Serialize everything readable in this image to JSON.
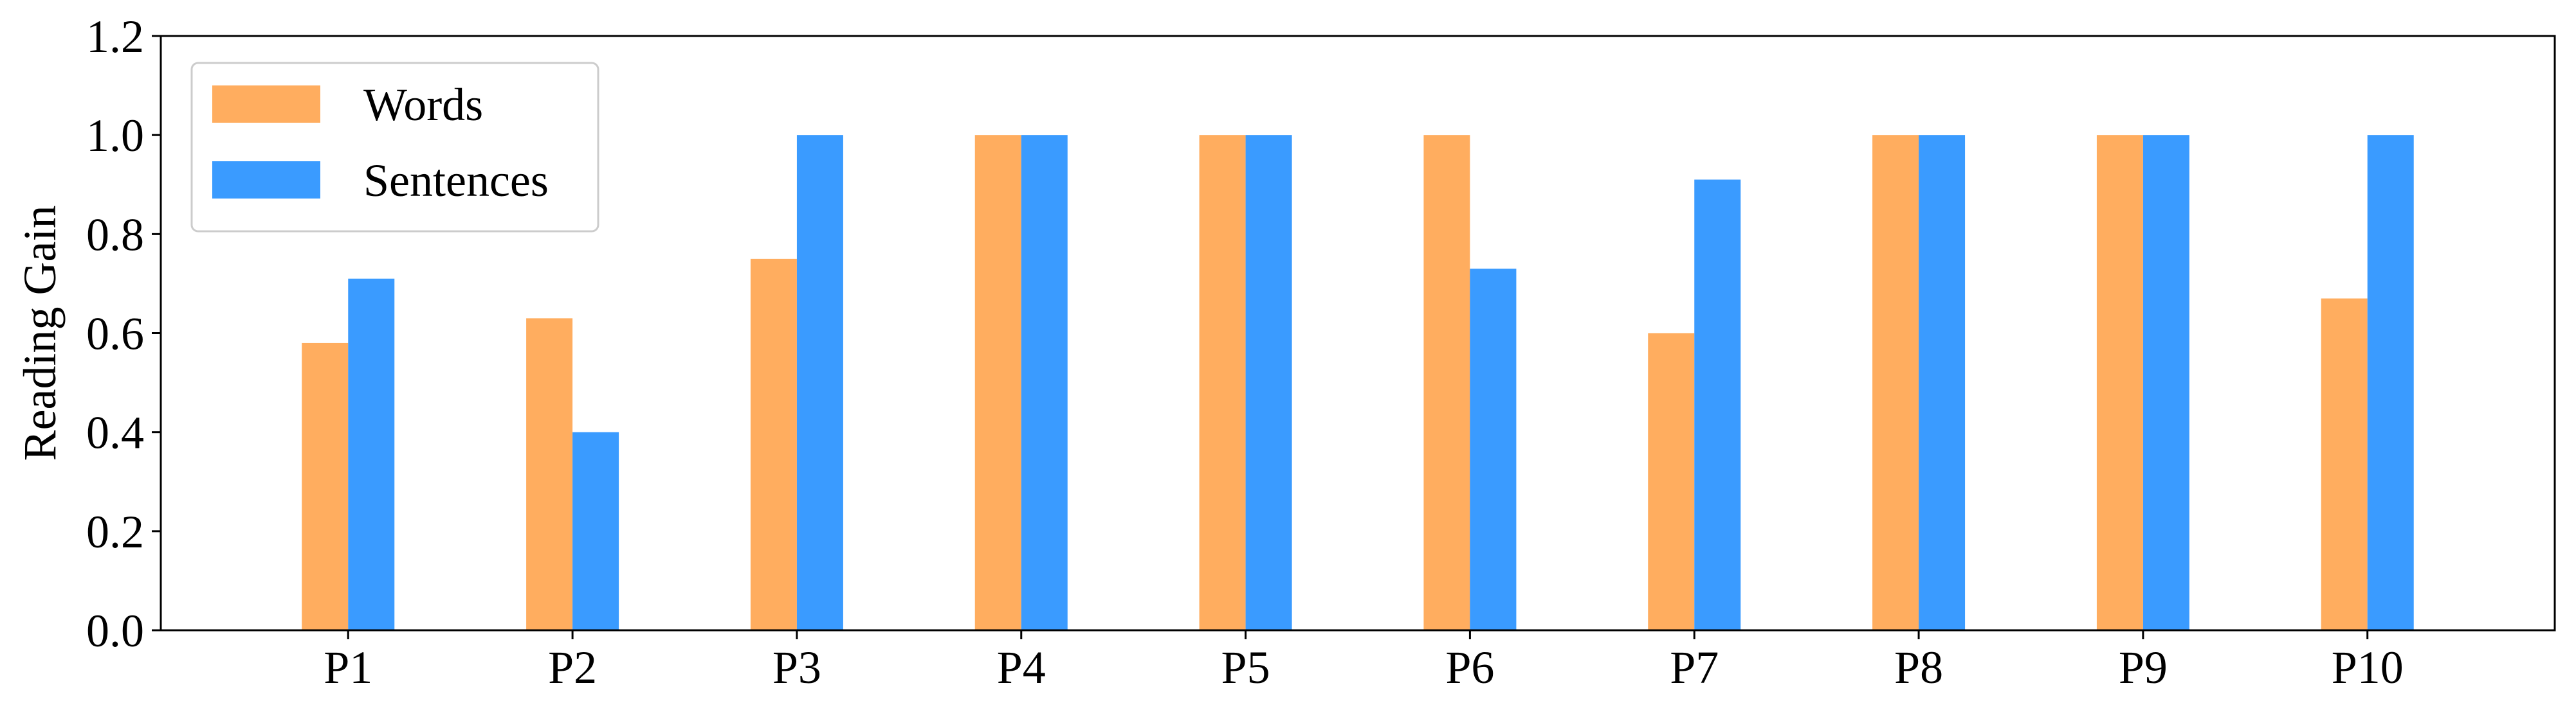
{
  "chart_data": {
    "type": "bar",
    "title": "",
    "xlabel": "",
    "ylabel": "Reading Gain",
    "ylim": [
      0,
      1.2
    ],
    "yticks": [
      "0.0",
      "0.2",
      "0.4",
      "0.6",
      "0.8",
      "1.0",
      "1.2"
    ],
    "categories": [
      "P1",
      "P2",
      "P3",
      "P4",
      "P5",
      "P6",
      "P7",
      "P8",
      "P9",
      "P10"
    ],
    "series": [
      {
        "name": "Words",
        "color": "#FFAD5F",
        "values": [
          0.58,
          0.63,
          0.75,
          1.0,
          1.0,
          1.0,
          0.6,
          1.0,
          1.0,
          0.67
        ]
      },
      {
        "name": "Sentences",
        "color": "#3A9BFF",
        "values": [
          0.71,
          0.4,
          1.0,
          1.0,
          1.0,
          0.73,
          0.91,
          1.0,
          1.0,
          1.0
        ]
      }
    ],
    "grid": false,
    "legend_position": "top-left"
  }
}
